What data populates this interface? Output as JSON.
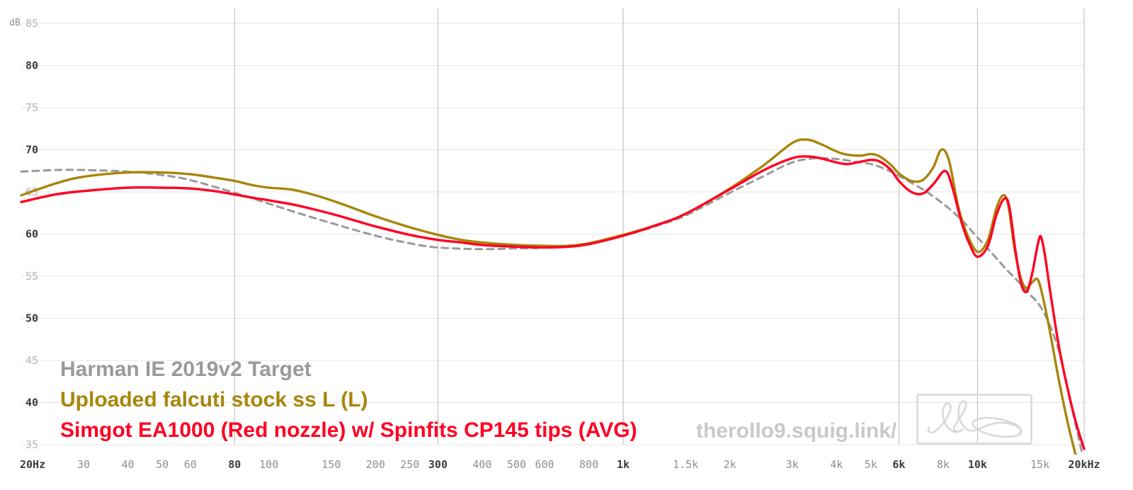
{
  "watermark": {
    "text": "therollo9.squig.link/",
    "color": "#c9c9c9"
  },
  "chart_data": {
    "type": "line",
    "title": "",
    "x_scale": "log",
    "y_unit": "dB",
    "xlim": [
      20,
      20000
    ],
    "ylim": [
      35,
      85
    ],
    "grid": true,
    "legend_position": "bottom-left",
    "y_ticks": [
      {
        "v": 85,
        "bold": false
      },
      {
        "v": 80,
        "bold": true
      },
      {
        "v": 75,
        "bold": false
      },
      {
        "v": 70,
        "bold": true
      },
      {
        "v": 65,
        "bold": false
      },
      {
        "v": 60,
        "bold": true
      },
      {
        "v": 55,
        "bold": false
      },
      {
        "v": 50,
        "bold": true
      },
      {
        "v": 45,
        "bold": false
      },
      {
        "v": 40,
        "bold": true
      },
      {
        "v": 35,
        "bold": false
      }
    ],
    "x_ticks": [
      {
        "f": 20,
        "label": "20Hz",
        "bold": true,
        "line": false
      },
      {
        "f": 30,
        "label": "30",
        "bold": false,
        "line": false
      },
      {
        "f": 40,
        "label": "40",
        "bold": false,
        "line": false
      },
      {
        "f": 50,
        "label": "50",
        "bold": false,
        "line": false
      },
      {
        "f": 60,
        "label": "60",
        "bold": false,
        "line": false
      },
      {
        "f": 80,
        "label": "80",
        "bold": true,
        "line": true
      },
      {
        "f": 100,
        "label": "100",
        "bold": false,
        "line": false
      },
      {
        "f": 150,
        "label": "150",
        "bold": false,
        "line": false
      },
      {
        "f": 200,
        "label": "200",
        "bold": false,
        "line": false
      },
      {
        "f": 250,
        "label": "250",
        "bold": false,
        "line": false
      },
      {
        "f": 300,
        "label": "300",
        "bold": true,
        "line": true
      },
      {
        "f": 400,
        "label": "400",
        "bold": false,
        "line": false
      },
      {
        "f": 500,
        "label": "500",
        "bold": false,
        "line": false
      },
      {
        "f": 600,
        "label": "600",
        "bold": false,
        "line": false
      },
      {
        "f": 800,
        "label": "800",
        "bold": false,
        "line": false
      },
      {
        "f": 1000,
        "label": "1k",
        "bold": true,
        "line": true
      },
      {
        "f": 1500,
        "label": "1.5k",
        "bold": false,
        "line": false
      },
      {
        "f": 2000,
        "label": "2k",
        "bold": false,
        "line": false
      },
      {
        "f": 3000,
        "label": "3k",
        "bold": false,
        "line": false
      },
      {
        "f": 4000,
        "label": "4k",
        "bold": false,
        "line": false
      },
      {
        "f": 5000,
        "label": "5k",
        "bold": false,
        "line": false
      },
      {
        "f": 6000,
        "label": "6k",
        "bold": true,
        "line": true
      },
      {
        "f": 8000,
        "label": "8k",
        "bold": false,
        "line": false
      },
      {
        "f": 10000,
        "label": "10k",
        "bold": true,
        "line": true
      },
      {
        "f": 15000,
        "label": "15k",
        "bold": false,
        "line": false
      },
      {
        "f": 20000,
        "label": "20kHz",
        "bold": true,
        "line": true
      }
    ],
    "series": [
      {
        "name": "Harman IE 2019v2 Target",
        "color": "#9a9a9a",
        "style": "dashed",
        "points": [
          [
            20,
            67.4
          ],
          [
            25,
            67.6
          ],
          [
            30,
            67.6
          ],
          [
            40,
            67.4
          ],
          [
            50,
            67.0
          ],
          [
            60,
            66.4
          ],
          [
            80,
            64.9
          ],
          [
            100,
            63.6
          ],
          [
            125,
            62.3
          ],
          [
            150,
            61.3
          ],
          [
            200,
            59.8
          ],
          [
            250,
            58.9
          ],
          [
            300,
            58.4
          ],
          [
            400,
            58.2
          ],
          [
            500,
            58.3
          ],
          [
            600,
            58.4
          ],
          [
            800,
            58.9
          ],
          [
            1000,
            59.8
          ],
          [
            1250,
            61.0
          ],
          [
            1500,
            62.2
          ],
          [
            2000,
            64.9
          ],
          [
            2500,
            66.9
          ],
          [
            3000,
            68.5
          ],
          [
            3500,
            69.0
          ],
          [
            4000,
            68.9
          ],
          [
            4500,
            68.6
          ],
          [
            5000,
            68.3
          ],
          [
            5500,
            67.7
          ],
          [
            6000,
            66.9
          ],
          [
            7000,
            65.3
          ],
          [
            8000,
            63.6
          ],
          [
            9000,
            61.7
          ],
          [
            10000,
            59.6
          ],
          [
            11000,
            57.7
          ],
          [
            12000,
            55.9
          ],
          [
            13000,
            54.4
          ],
          [
            14000,
            52.9
          ],
          [
            15000,
            51.5
          ],
          [
            16000,
            49.2
          ],
          [
            17000,
            46.0
          ],
          [
            18000,
            41.5
          ],
          [
            19000,
            37.0
          ],
          [
            20000,
            33.0
          ]
        ]
      },
      {
        "name": "Uploaded falcuti stock ss L (L)",
        "color": "#a8860b",
        "style": "solid",
        "points": [
          [
            20,
            64.6
          ],
          [
            25,
            66.0
          ],
          [
            30,
            66.8
          ],
          [
            40,
            67.3
          ],
          [
            50,
            67.3
          ],
          [
            60,
            67.1
          ],
          [
            70,
            66.7
          ],
          [
            80,
            66.3
          ],
          [
            90,
            65.8
          ],
          [
            100,
            65.5
          ],
          [
            115,
            65.3
          ],
          [
            130,
            64.8
          ],
          [
            150,
            64.0
          ],
          [
            175,
            63.0
          ],
          [
            200,
            62.1
          ],
          [
            250,
            60.8
          ],
          [
            300,
            59.9
          ],
          [
            350,
            59.3
          ],
          [
            400,
            59.0
          ],
          [
            500,
            58.7
          ],
          [
            600,
            58.6
          ],
          [
            700,
            58.6
          ],
          [
            800,
            58.9
          ],
          [
            1000,
            59.9
          ],
          [
            1250,
            61.1
          ],
          [
            1500,
            62.4
          ],
          [
            2000,
            65.4
          ],
          [
            2500,
            68.2
          ],
          [
            3000,
            70.8
          ],
          [
            3300,
            71.2
          ],
          [
            3600,
            70.7
          ],
          [
            4000,
            69.8
          ],
          [
            4300,
            69.4
          ],
          [
            4700,
            69.3
          ],
          [
            5000,
            69.5
          ],
          [
            5300,
            69.2
          ],
          [
            5700,
            68.2
          ],
          [
            6000,
            67.2
          ],
          [
            6500,
            66.3
          ],
          [
            7000,
            66.4
          ],
          [
            7500,
            67.9
          ],
          [
            7900,
            70.0
          ],
          [
            8300,
            68.8
          ],
          [
            8800,
            63.5
          ],
          [
            9300,
            60.2
          ],
          [
            10000,
            57.9
          ],
          [
            10700,
            59.3
          ],
          [
            11300,
            63.0
          ],
          [
            11800,
            64.6
          ],
          [
            12200,
            63.5
          ],
          [
            12700,
            58.5
          ],
          [
            13200,
            55.0
          ],
          [
            13700,
            53.6
          ],
          [
            14300,
            54.3
          ],
          [
            14800,
            54.6
          ],
          [
            15300,
            52.5
          ],
          [
            16000,
            48.5
          ],
          [
            17000,
            42.5
          ],
          [
            18000,
            37.5
          ],
          [
            19000,
            33.5
          ]
        ]
      },
      {
        "name": "Simgot EA1000 (Red nozzle) w/ Spinfits CP145 tips (AVG)",
        "color": "#ff0022",
        "style": "solid",
        "points": [
          [
            20,
            63.8
          ],
          [
            25,
            64.7
          ],
          [
            30,
            65.1
          ],
          [
            40,
            65.5
          ],
          [
            50,
            65.5
          ],
          [
            60,
            65.4
          ],
          [
            70,
            65.1
          ],
          [
            80,
            64.7
          ],
          [
            90,
            64.3
          ],
          [
            100,
            64.0
          ],
          [
            120,
            63.4
          ],
          [
            150,
            62.4
          ],
          [
            175,
            61.6
          ],
          [
            200,
            60.9
          ],
          [
            250,
            59.9
          ],
          [
            300,
            59.3
          ],
          [
            350,
            59.0
          ],
          [
            400,
            58.7
          ],
          [
            500,
            58.5
          ],
          [
            600,
            58.4
          ],
          [
            700,
            58.5
          ],
          [
            800,
            58.8
          ],
          [
            1000,
            59.8
          ],
          [
            1250,
            61.1
          ],
          [
            1500,
            62.4
          ],
          [
            2000,
            65.3
          ],
          [
            2500,
            67.6
          ],
          [
            3000,
            69.0
          ],
          [
            3300,
            69.2
          ],
          [
            3600,
            69.0
          ],
          [
            4000,
            68.5
          ],
          [
            4300,
            68.3
          ],
          [
            4700,
            68.6
          ],
          [
            5000,
            68.8
          ],
          [
            5300,
            68.6
          ],
          [
            5700,
            67.6
          ],
          [
            6000,
            66.3
          ],
          [
            6500,
            65.0
          ],
          [
            7000,
            64.8
          ],
          [
            7500,
            65.9
          ],
          [
            8100,
            67.5
          ],
          [
            8500,
            65.5
          ],
          [
            9000,
            61.5
          ],
          [
            9500,
            58.8
          ],
          [
            10000,
            57.3
          ],
          [
            10700,
            58.6
          ],
          [
            11300,
            62.2
          ],
          [
            11900,
            64.2
          ],
          [
            12300,
            63.2
          ],
          [
            12800,
            58.0
          ],
          [
            13300,
            54.0
          ],
          [
            13800,
            53.2
          ],
          [
            14300,
            55.5
          ],
          [
            14800,
            58.8
          ],
          [
            15100,
            59.7
          ],
          [
            15500,
            57.5
          ],
          [
            16000,
            53.5
          ],
          [
            17000,
            46.5
          ],
          [
            18000,
            41.5
          ],
          [
            19000,
            37.5
          ],
          [
            20000,
            34.5
          ]
        ]
      }
    ]
  }
}
